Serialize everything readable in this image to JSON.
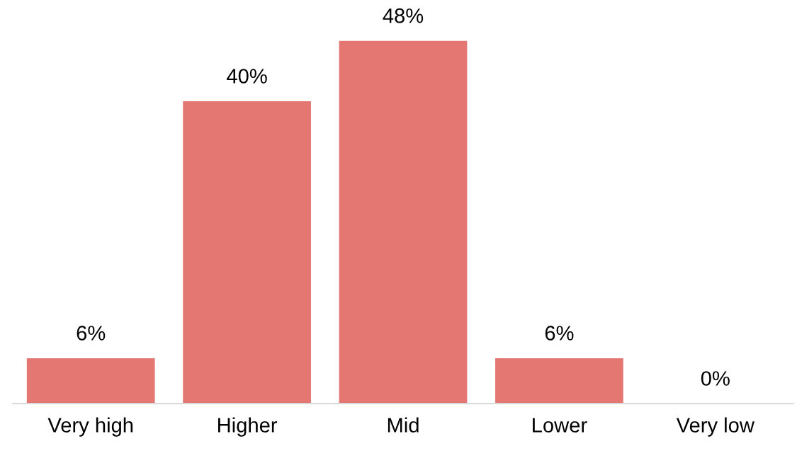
{
  "chart_data": {
    "type": "bar",
    "categories": [
      "Very high",
      "Higher",
      "Mid",
      "Lower",
      "Very low"
    ],
    "values": [
      6,
      40,
      48,
      6,
      0
    ],
    "value_labels": [
      "6%",
      "40%",
      "48%",
      "6%",
      "0%"
    ],
    "color": "#e57773",
    "grid": false,
    "legend": false
  }
}
